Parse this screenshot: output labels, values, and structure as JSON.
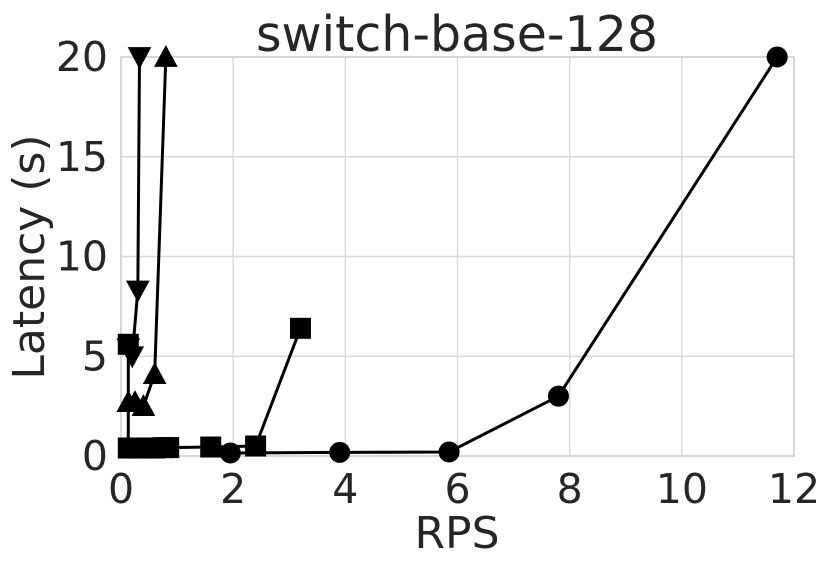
{
  "chart_data": {
    "type": "line",
    "title": "switch-base-128",
    "xlabel": "RPS",
    "ylabel": "Latency (s)",
    "xlim": [
      0,
      12
    ],
    "ylim": [
      0,
      20
    ],
    "xticks": [
      0,
      2,
      4,
      6,
      8,
      10,
      12
    ],
    "yticks": [
      0,
      5,
      10,
      15,
      20
    ],
    "grid": true,
    "legend": "none",
    "series": [
      {
        "marker": "circle",
        "points": [
          [
            1.95,
            0.15
          ],
          [
            3.9,
            0.18
          ],
          [
            5.85,
            0.2
          ],
          [
            7.8,
            3.0
          ],
          [
            11.7,
            20.0
          ]
        ]
      },
      {
        "marker": "square",
        "points": [
          [
            0.13,
            5.6
          ],
          [
            0.13,
            0.4
          ],
          [
            0.2,
            0.4
          ],
          [
            0.3,
            0.4
          ],
          [
            0.4,
            0.4
          ],
          [
            0.5,
            0.4
          ],
          [
            0.6,
            0.4
          ],
          [
            0.75,
            0.42
          ],
          [
            0.85,
            0.42
          ],
          [
            1.6,
            0.45
          ],
          [
            2.4,
            0.5
          ],
          [
            3.2,
            6.4
          ]
        ]
      },
      {
        "marker": "triangle-up",
        "points": [
          [
            0.13,
            2.7
          ],
          [
            0.25,
            2.7
          ],
          [
            0.4,
            2.5
          ],
          [
            0.6,
            4.1
          ],
          [
            0.8,
            20.0
          ]
        ]
      },
      {
        "marker": "triangle-down",
        "points": [
          [
            0.13,
            5.4
          ],
          [
            0.2,
            5.0
          ],
          [
            0.3,
            8.3
          ],
          [
            0.33,
            20.0
          ]
        ]
      }
    ]
  }
}
